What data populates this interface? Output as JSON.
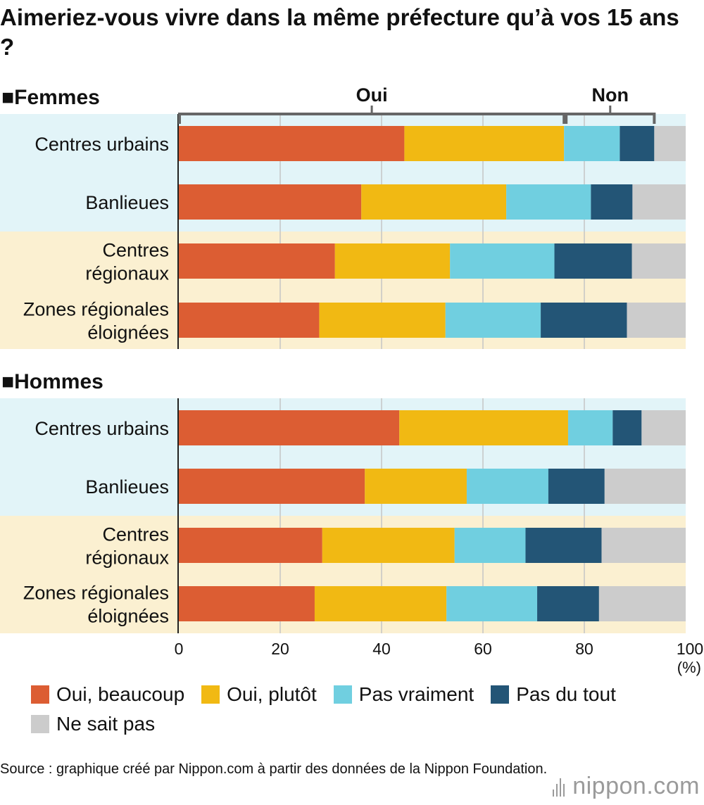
{
  "chart_data": {
    "type": "bar",
    "orientation": "horizontal",
    "stacked": true,
    "title": "Aimeriez-vous vivre dans la même préfecture qu’à vos 15 ans ?",
    "xlim": [
      0,
      100
    ],
    "xticks": [
      "0",
      "20",
      "40",
      "60",
      "80",
      "100"
    ],
    "unit": "(%)",
    "grid": true,
    "legend_placement": "bottom",
    "brackets": [
      {
        "label": "Oui",
        "from": "Oui, beaucoup",
        "to": "Oui, plutôt"
      },
      {
        "label": "Non",
        "from": "Pas vraiment",
        "to": "Pas du tout"
      }
    ],
    "series": [
      {
        "name": "Oui, beaucoup",
        "color": "#dc5d33"
      },
      {
        "name": "Oui, plutôt",
        "color": "#f1b913"
      },
      {
        "name": "Pas vraiment",
        "color": "#70cfe0"
      },
      {
        "name": "Pas du tout",
        "color": "#235576"
      },
      {
        "name": "Ne sait pas",
        "color": "#cccccc"
      }
    ],
    "groups": [
      {
        "label": "■Femmes",
        "categories": [
          "Centres urbains",
          "Banlieues",
          "Centres\nrégionaux",
          "Zones régionales\néloignées"
        ],
        "values": [
          [
            44.5,
            31.5,
            11.0,
            6.8,
            6.2
          ],
          [
            36.0,
            28.6,
            16.7,
            8.2,
            10.5
          ],
          [
            30.8,
            22.7,
            20.6,
            15.3,
            10.6
          ],
          [
            27.7,
            24.9,
            18.8,
            17.0,
            11.6
          ]
        ]
      },
      {
        "label": "■Hommes",
        "categories": [
          "Centres urbains",
          "Banlieues",
          "Centres\nrégionaux",
          "Zones régionales\néloignées"
        ],
        "values": [
          [
            43.5,
            33.3,
            8.8,
            5.7,
            8.7
          ],
          [
            36.7,
            20.1,
            16.1,
            11.1,
            16.0
          ],
          [
            28.3,
            26.1,
            14.0,
            15.0,
            16.6
          ],
          [
            26.8,
            26.0,
            17.9,
            12.2,
            17.1
          ]
        ]
      }
    ]
  },
  "source": "Source : graphique créé par Nippon.com à partir des données de la Nippon Foundation.",
  "brand": "nippon.com",
  "colors": {
    "band_urban": "#e2f4f8",
    "band_regional": "#fbf0d1",
    "grid": "#c5c5c5",
    "bracket": "#666666"
  }
}
